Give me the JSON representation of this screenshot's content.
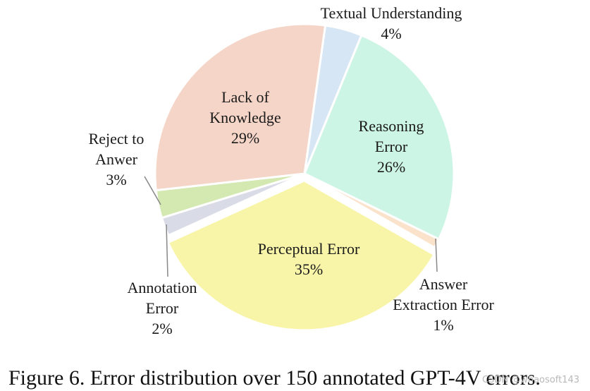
{
  "chart_data": {
    "type": "pie",
    "title": "",
    "slices": [
      {
        "name": "Textual Understanding",
        "value": 4,
        "label_lines": [
          "Textual Understanding",
          "4%"
        ],
        "color": "#d6e6f5"
      },
      {
        "name": "Reasoning Error",
        "value": 26,
        "label_lines": [
          "Reasoning",
          "Error",
          "26%"
        ],
        "color": "#cdf5e5"
      },
      {
        "name": "Answer Extraction Error",
        "value": 1,
        "label_lines": [
          "Answer",
          "Extraction Error",
          "1%"
        ],
        "color": "#fbe2cb"
      },
      {
        "name": "Perceptual Error",
        "value": 35,
        "label_lines": [
          "Perceptual Error",
          "35%"
        ],
        "color": "#f8f5a9"
      },
      {
        "name": "Annotation Error",
        "value": 2,
        "label_lines": [
          "Annotation",
          "Error",
          "2%"
        ],
        "color": "#d9dbe6"
      },
      {
        "name": "Reject to Anwer",
        "value": 3,
        "label_lines": [
          "Reject to",
          "Anwer",
          "3%"
        ],
        "color": "#d3e9b1"
      },
      {
        "name": "Lack of Knowledge",
        "value": 29,
        "label_lines": [
          "Lack of",
          "Knowledge",
          "29%"
        ],
        "color": "#f5d5c7"
      }
    ]
  },
  "caption": "Figure 6. Error distribution over 150 annotated GPT-4V errors.",
  "watermark": "CSDN @whaosoft143"
}
